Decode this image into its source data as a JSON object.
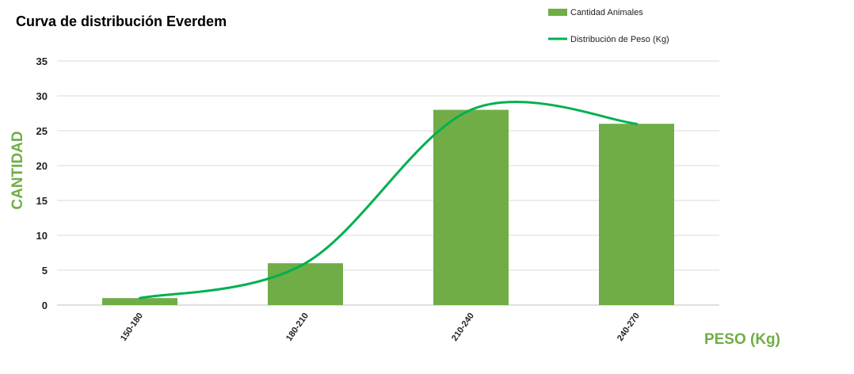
{
  "chart_data": {
    "type": "bar",
    "title": "Curva de distribución Everdem",
    "xlabel": "PESO (Kg)",
    "ylabel": "CANTIDAD",
    "categories": [
      "150-180",
      "180-210",
      "210-240",
      "240-270"
    ],
    "series": [
      {
        "name": "Cantidad Animales",
        "type": "bar",
        "values": [
          1,
          6,
          28,
          26
        ],
        "color": "#70ad47"
      },
      {
        "name": "Distribución de Peso (Kg)",
        "type": "line",
        "smooth": true,
        "values": [
          1,
          6,
          28,
          26
        ],
        "color": "#00b050"
      }
    ],
    "ylim": [
      0,
      35
    ],
    "yticks": [
      0,
      5,
      10,
      15,
      20,
      25,
      30,
      35
    ],
    "grid": true,
    "legend": "top-right",
    "axis_label_color": "#70ad47"
  }
}
